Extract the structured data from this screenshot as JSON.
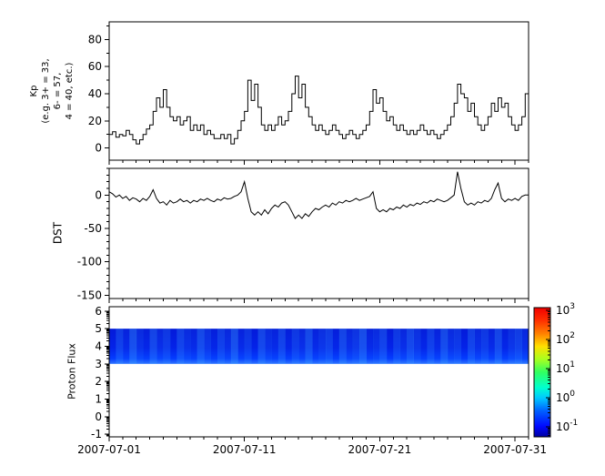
{
  "labels": {
    "kp_ylabel": "Kp\n(e.g. 3+ = 33,\n6- = 57,\n4 = 40, etc.)",
    "dst_ylabel": "DST",
    "proton_ylabel": "Proton Flux"
  },
  "x_axis": {
    "start_date": "2007-07-01",
    "range_days": [
      0,
      31
    ],
    "major_tick_days": [
      0,
      10,
      20,
      30
    ],
    "major_tick_labels": [
      "2007-07-01",
      "2007-07-11",
      "2007-07-21",
      "2007-07-31"
    ],
    "minor_tick_interval_days": 1
  },
  "panels": {
    "kp": {
      "ylim": [
        -9,
        93
      ],
      "yticks": [
        0,
        20,
        40,
        60,
        80
      ],
      "y_minor_step": 10
    },
    "dst": {
      "ylim": [
        -155,
        40
      ],
      "yticks": [
        0,
        -50,
        -100,
        -150
      ],
      "y_minor_step": 10
    },
    "proton": {
      "ylim": [
        -1.15,
        6.25
      ],
      "yticks": [
        6,
        5,
        4,
        3,
        2,
        1,
        0,
        -1
      ],
      "log_minor": true
    }
  },
  "colorbar": {
    "scale": "log",
    "tick_exponents": [
      3,
      2,
      1,
      0,
      -1
    ],
    "range_exponents": [
      -1.35,
      3.1
    ],
    "gradient_bottom_to_top": [
      [
        0.0,
        "#0000a0"
      ],
      [
        0.08,
        "#0008ff"
      ],
      [
        0.2,
        "#0060ff"
      ],
      [
        0.3,
        "#00c8ff"
      ],
      [
        0.38,
        "#00ffd0"
      ],
      [
        0.5,
        "#30ff60"
      ],
      [
        0.6,
        "#a8ff20"
      ],
      [
        0.7,
        "#ffe000"
      ],
      [
        0.8,
        "#ff8000"
      ],
      [
        0.9,
        "#ff3000"
      ],
      [
        1.0,
        "#f00000"
      ]
    ]
  },
  "chart_data": [
    {
      "type": "line",
      "name": "Kp",
      "panel": "kp",
      "step": true,
      "x_unit": "days since 2007-07-01",
      "x_start_day": 0,
      "x_step_days": 0.25,
      "values": [
        10,
        12,
        8,
        10,
        9,
        13,
        10,
        6,
        3,
        6,
        10,
        14,
        17,
        27,
        37,
        30,
        43,
        30,
        23,
        20,
        23,
        17,
        20,
        23,
        13,
        17,
        13,
        17,
        10,
        13,
        10,
        7,
        7,
        10,
        7,
        10,
        3,
        7,
        13,
        20,
        27,
        50,
        35,
        47,
        30,
        17,
        13,
        17,
        13,
        17,
        23,
        17,
        20,
        27,
        40,
        53,
        37,
        47,
        30,
        23,
        17,
        13,
        17,
        13,
        10,
        13,
        17,
        13,
        10,
        7,
        10,
        13,
        10,
        7,
        10,
        13,
        17,
        27,
        43,
        33,
        37,
        27,
        20,
        23,
        17,
        13,
        17,
        13,
        10,
        13,
        10,
        13,
        17,
        13,
        10,
        13,
        10,
        7,
        10,
        13,
        17,
        23,
        33,
        47,
        40,
        37,
        27,
        33,
        23,
        17,
        13,
        17,
        23,
        33,
        27,
        37,
        30,
        33,
        23,
        17,
        13,
        17,
        23,
        40
      ]
    },
    {
      "type": "line",
      "name": "DST",
      "panel": "dst",
      "step": false,
      "x_unit": "days since 2007-07-01",
      "x_start_day": 0,
      "x_step_days": 0.25,
      "values": [
        5,
        2,
        -3,
        0,
        -5,
        -2,
        -8,
        -4,
        -6,
        -10,
        -5,
        -8,
        -2,
        8,
        -5,
        -12,
        -10,
        -15,
        -8,
        -12,
        -10,
        -6,
        -10,
        -8,
        -12,
        -8,
        -10,
        -6,
        -8,
        -5,
        -8,
        -10,
        -6,
        -8,
        -4,
        -6,
        -5,
        -2,
        0,
        5,
        20,
        -5,
        -25,
        -30,
        -25,
        -30,
        -22,
        -28,
        -20,
        -15,
        -18,
        -12,
        -10,
        -15,
        -25,
        -35,
        -30,
        -35,
        -28,
        -32,
        -25,
        -20,
        -22,
        -18,
        -15,
        -18,
        -12,
        -15,
        -10,
        -12,
        -8,
        -10,
        -8,
        -5,
        -8,
        -6,
        -4,
        -2,
        5,
        -20,
        -25,
        -22,
        -25,
        -20,
        -22,
        -18,
        -20,
        -15,
        -18,
        -14,
        -16,
        -12,
        -14,
        -10,
        -12,
        -8,
        -10,
        -6,
        -8,
        -10,
        -8,
        -4,
        0,
        35,
        10,
        -10,
        -15,
        -12,
        -15,
        -10,
        -12,
        -8,
        -10,
        -5,
        8,
        18,
        -5,
        -10,
        -6,
        -8,
        -5,
        -8,
        -2,
        0
      ]
    },
    {
      "type": "heatmap",
      "name": "Proton Flux",
      "panel": "proton",
      "band_y_range": [
        3,
        5
      ],
      "x_range_days": [
        0,
        31
      ],
      "colormap": "jet",
      "value_scale": "log10",
      "colorbar_range": [
        0.045,
        1260
      ],
      "band_colors_top_to_bottom": [
        [
          0,
          "#0013d8"
        ],
        [
          0.55,
          "#001ce8"
        ],
        [
          0.85,
          "#0036ff"
        ],
        [
          1,
          "#2f72ff"
        ]
      ],
      "streak_color": "#45b4ff",
      "streak_intensities": [
        0.1,
        0.5,
        0.2,
        0.7,
        0.3,
        0.15,
        0.6,
        0.25,
        0.45,
        0.1,
        0.55,
        0.3,
        0.2,
        0.65,
        0.35,
        0.15,
        0.5,
        0.25,
        0.7,
        0.2,
        0.4,
        0.1,
        0.6,
        0.3,
        0.2,
        0.55,
        0.15,
        0.45,
        0.25,
        0.65,
        0.2,
        0.35,
        0.5,
        0.15,
        0.6,
        0.25,
        0.4,
        0.7,
        0.2,
        0.3,
        0.55,
        0.1,
        0.45,
        0.25,
        0.6,
        0.35,
        0.15,
        0.5,
        0.2,
        0.65,
        0.3,
        0.4,
        0.1,
        0.55,
        0.25,
        0.45,
        0.2,
        0.6,
        0.15,
        0.35,
        0.5,
        0.25
      ]
    }
  ]
}
